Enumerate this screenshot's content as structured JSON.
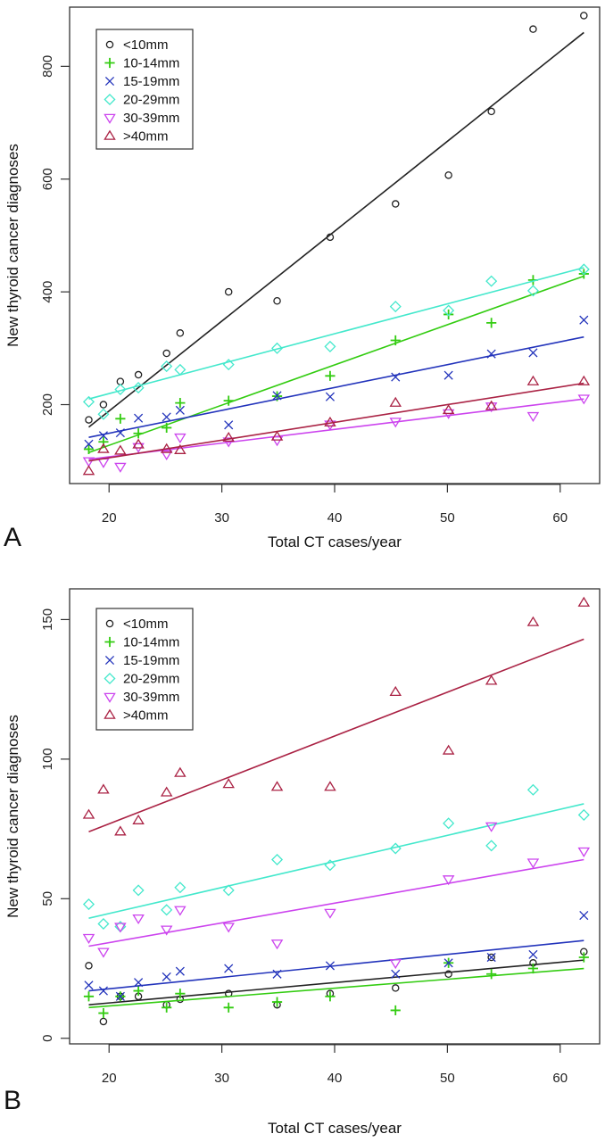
{
  "chart_data": [
    {
      "panel": "A",
      "type": "scatter",
      "title": "",
      "xlabel": "Total CT cases/year",
      "ylabel": "New thyroid cancer diagnoses",
      "xlim": [
        16.5,
        63.5
      ],
      "ylim": [
        60,
        905
      ],
      "xticks": [
        20,
        30,
        40,
        50,
        60
      ],
      "yticks": [
        200,
        400,
        600,
        800
      ],
      "grid": false,
      "legend_position": "top-left",
      "trendlines": true,
      "x": [
        18.2,
        19.5,
        21.0,
        22.6,
        25.1,
        26.3,
        30.6,
        34.9,
        39.6,
        45.4,
        50.1,
        53.9,
        57.6,
        62.1
      ],
      "series": [
        {
          "name": "<10mm",
          "marker": "circle",
          "color": "#222222",
          "values": [
            173,
            200,
            241,
            253,
            291,
            327,
            400,
            384,
            497,
            556,
            607,
            720,
            866,
            890
          ],
          "fit": [
            160,
            860
          ]
        },
        {
          "name": "10-14mm",
          "marker": "plus",
          "color": "#33cc11",
          "values": [
            121,
            134,
            175,
            149,
            159,
            203,
            207,
            215,
            251,
            314,
            360,
            345,
            421,
            432
          ],
          "fit": [
            115,
            428
          ]
        },
        {
          "name": "15-19mm",
          "marker": "cross",
          "color": "#2233bb",
          "values": [
            130,
            145,
            150,
            176,
            178,
            190,
            164,
            216,
            214,
            249,
            252,
            290,
            292,
            350
          ],
          "fit": [
            142,
            320
          ]
        },
        {
          "name": "20-29mm",
          "marker": "diamond",
          "color": "#44e8cc",
          "values": [
            205,
            183,
            227,
            230,
            268,
            262,
            271,
            300,
            303,
            374,
            367,
            419,
            402,
            440
          ],
          "fit": [
            210,
            443
          ]
        },
        {
          "name": "30-39mm",
          "marker": "triangle-down",
          "color": "#cc44ee",
          "values": [
            100,
            98,
            90,
            125,
            112,
            142,
            135,
            137,
            165,
            170,
            185,
            197,
            180,
            211
          ],
          "fit": [
            103,
            210
          ]
        },
        {
          "name": ">40mm",
          "marker": "triangle-up",
          "color": "#aa2244",
          "values": [
            82,
            121,
            118,
            129,
            121,
            119,
            141,
            143,
            168,
            203,
            190,
            197,
            241,
            241
          ],
          "fit": [
            100,
            238
          ]
        }
      ]
    },
    {
      "panel": "B",
      "type": "scatter",
      "title": "",
      "xlabel": "Total CT cases/year",
      "ylabel": "New thyroid cancer diagnoses",
      "xlim": [
        16.5,
        63.5
      ],
      "ylim": [
        -2,
        161
      ],
      "xticks": [
        20,
        30,
        40,
        50,
        60
      ],
      "yticks": [
        0,
        50,
        100,
        150
      ],
      "grid": false,
      "legend_position": "top-left",
      "trendlines": true,
      "x": [
        18.2,
        19.5,
        21.0,
        22.6,
        25.1,
        26.3,
        30.6,
        34.9,
        39.6,
        45.4,
        50.1,
        53.9,
        57.6,
        62.1
      ],
      "series": [
        {
          "name": "<10mm",
          "marker": "circle",
          "color": "#222222",
          "values": [
            26,
            6,
            15,
            15,
            12,
            14,
            16,
            12,
            16,
            18,
            23,
            29,
            27,
            31
          ],
          "fit": [
            12,
            28
          ]
        },
        {
          "name": "10-14mm",
          "marker": "plus",
          "color": "#33cc11",
          "values": [
            15,
            9,
            15,
            17,
            11,
            16,
            11,
            13,
            15,
            10,
            27,
            23,
            25,
            29
          ],
          "fit": [
            11,
            25
          ]
        },
        {
          "name": "15-19mm",
          "marker": "cross",
          "color": "#2233bb",
          "values": [
            19,
            17,
            15,
            20,
            22,
            24,
            25,
            23,
            26,
            23,
            27,
            29,
            30,
            44
          ],
          "fit": [
            17,
            35
          ]
        },
        {
          "name": "20-29mm",
          "marker": "diamond",
          "color": "#44e8cc",
          "values": [
            48,
            41,
            40,
            53,
            46,
            54,
            53,
            64,
            62,
            68,
            77,
            69,
            89,
            80
          ],
          "fit": [
            43,
            84
          ]
        },
        {
          "name": "30-39mm",
          "marker": "triangle-down",
          "color": "#cc44ee",
          "values": [
            36,
            31,
            40,
            43,
            39,
            46,
            40,
            34,
            45,
            27,
            57,
            76,
            63,
            67
          ],
          "fit": [
            33,
            64
          ]
        },
        {
          "name": ">40mm",
          "marker": "triangle-up",
          "color": "#aa2244",
          "values": [
            80,
            89,
            74,
            78,
            88,
            95,
            91,
            90,
            90,
            124,
            103,
            128,
            149,
            156
          ],
          "fit": [
            74,
            143
          ]
        }
      ]
    }
  ],
  "panels": {
    "A": {
      "letter": "A"
    },
    "B": {
      "letter": "B"
    }
  }
}
